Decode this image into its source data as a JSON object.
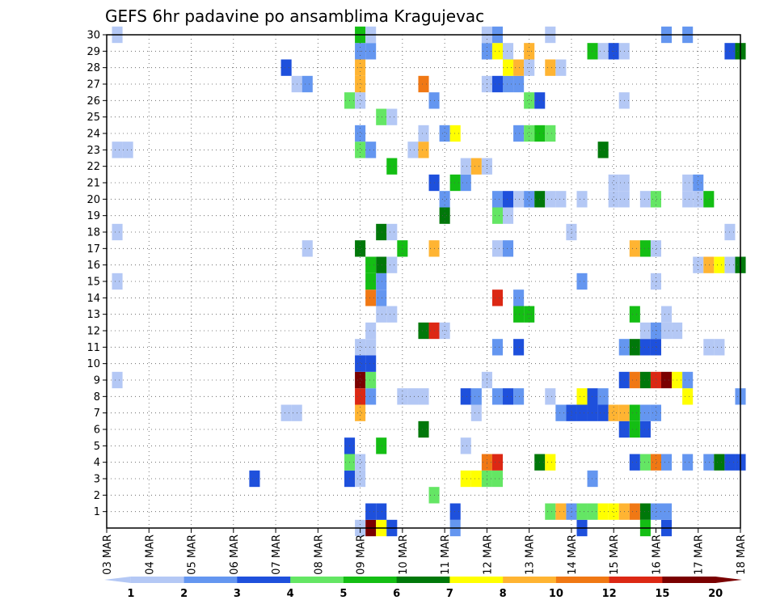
{
  "chart_data": {
    "type": "heatmap",
    "title": "GEFS 6hr padavine po ansamblima Kragujevac",
    "x_tick_labels": [
      "03 MAR",
      "04 MAR",
      "05 MAR",
      "06 MAR",
      "07 MAR",
      "08 MAR",
      "09 MAR",
      "10 MAR",
      "11 MAR",
      "12 MAR",
      "13 MAR",
      "14 MAR",
      "15 MAR",
      "16 MAR",
      "17 MAR",
      "18 MAR"
    ],
    "x_step_hours": 6,
    "x_range_days": [
      0,
      15
    ],
    "y_tick_labels": [
      "1",
      "2",
      "3",
      "4",
      "5",
      "6",
      "7",
      "8",
      "9",
      "10",
      "11",
      "12",
      "13",
      "14",
      "15",
      "16",
      "17",
      "18",
      "19",
      "20",
      "21",
      "22",
      "23",
      "24",
      "25",
      "26",
      "27",
      "28",
      "29",
      "30"
    ],
    "y_range": [
      0,
      30
    ],
    "grid": true,
    "colorbar": {
      "position": "bottom",
      "colors": [
        "#b4c8f5",
        "#6496f0",
        "#1e50dc",
        "#64e664",
        "#14be14",
        "#00780a",
        "#ffff00",
        "#ffb432",
        "#f07814",
        "#dc2814",
        "#7a0000"
      ],
      "labels": [
        "1",
        "2",
        "3",
        "4",
        "5",
        "6",
        "7",
        "8",
        "10",
        "12",
        "15",
        "20"
      ]
    },
    "cells": [
      {
        "t": 6.25,
        "m": 0,
        "c": 10
      },
      {
        "t": 6.5,
        "m": 0,
        "c": 6
      },
      {
        "t": 6.75,
        "m": 0,
        "c": 2
      },
      {
        "t": 8.25,
        "m": 0,
        "c": 1
      },
      {
        "t": 11.25,
        "m": 0,
        "c": 2
      },
      {
        "t": 12.75,
        "m": 0,
        "c": 4
      },
      {
        "t": 13.25,
        "m": 0,
        "c": 2
      },
      {
        "t": 6,
        "m": 0,
        "c": 0
      },
      {
        "t": 6.25,
        "m": 1,
        "c": 2
      },
      {
        "t": 6.5,
        "m": 1,
        "c": 2
      },
      {
        "t": 8.25,
        "m": 1,
        "c": 2
      },
      {
        "t": 10.5,
        "m": 1,
        "c": 3
      },
      {
        "t": 10.75,
        "m": 1,
        "c": 7
      },
      {
        "t": 11,
        "m": 1,
        "c": 1
      },
      {
        "t": 11.25,
        "m": 1,
        "c": 3
      },
      {
        "t": 11.5,
        "m": 1,
        "c": 3
      },
      {
        "t": 11.75,
        "m": 1,
        "c": 6
      },
      {
        "t": 12,
        "m": 1,
        "c": 6
      },
      {
        "t": 12.25,
        "m": 1,
        "c": 7
      },
      {
        "t": 12.5,
        "m": 1,
        "c": 8
      },
      {
        "t": 12.75,
        "m": 1,
        "c": 5
      },
      {
        "t": 13,
        "m": 1,
        "c": 1
      },
      {
        "t": 13.25,
        "m": 1,
        "c": 1
      },
      {
        "t": 7.75,
        "m": 2,
        "c": 3
      },
      {
        "t": 3.5,
        "m": 3,
        "c": 2
      },
      {
        "t": 5.75,
        "m": 3,
        "c": 2
      },
      {
        "t": 6,
        "m": 3,
        "c": 0
      },
      {
        "t": 8.5,
        "m": 3,
        "c": 6
      },
      {
        "t": 8.75,
        "m": 3,
        "c": 6
      },
      {
        "t": 9,
        "m": 3,
        "c": 3
      },
      {
        "t": 9.25,
        "m": 3,
        "c": 3
      },
      {
        "t": 11.5,
        "m": 3,
        "c": 1
      },
      {
        "t": 5.75,
        "m": 4,
        "c": 3
      },
      {
        "t": 6,
        "m": 4,
        "c": 0
      },
      {
        "t": 9,
        "m": 4,
        "c": 8
      },
      {
        "t": 9.25,
        "m": 4,
        "c": 9
      },
      {
        "t": 10.25,
        "m": 4,
        "c": 5
      },
      {
        "t": 10.5,
        "m": 4,
        "c": 6
      },
      {
        "t": 12.5,
        "m": 4,
        "c": 2
      },
      {
        "t": 12.75,
        "m": 4,
        "c": 3
      },
      {
        "t": 13,
        "m": 4,
        "c": 8
      },
      {
        "t": 13.25,
        "m": 4,
        "c": 1
      },
      {
        "t": 13.75,
        "m": 4,
        "c": 1
      },
      {
        "t": 14.25,
        "m": 4,
        "c": 1
      },
      {
        "t": 14.5,
        "m": 4,
        "c": 5
      },
      {
        "t": 14.75,
        "m": 4,
        "c": 2
      },
      {
        "t": 15,
        "m": 4,
        "c": 2
      },
      {
        "t": 5.75,
        "m": 5,
        "c": 2
      },
      {
        "t": 6.5,
        "m": 5,
        "c": 4
      },
      {
        "t": 8.5,
        "m": 5,
        "c": 0
      },
      {
        "t": 7.5,
        "m": 6,
        "c": 5
      },
      {
        "t": 12.75,
        "m": 6,
        "c": 2
      },
      {
        "t": 12.5,
        "m": 6,
        "c": 4
      },
      {
        "t": 12.25,
        "m": 6,
        "c": 2
      },
      {
        "t": 4.25,
        "m": 7,
        "c": 0
      },
      {
        "t": 4.5,
        "m": 7,
        "c": 0
      },
      {
        "t": 6,
        "m": 7,
        "c": 7
      },
      {
        "t": 8.75,
        "m": 7,
        "c": 0
      },
      {
        "t": 10.75,
        "m": 7,
        "c": 1
      },
      {
        "t": 11,
        "m": 7,
        "c": 2
      },
      {
        "t": 11.25,
        "m": 7,
        "c": 2
      },
      {
        "t": 11.5,
        "m": 7,
        "c": 2
      },
      {
        "t": 11.75,
        "m": 7,
        "c": 2
      },
      {
        "t": 12,
        "m": 7,
        "c": 7
      },
      {
        "t": 12.25,
        "m": 7,
        "c": 7
      },
      {
        "t": 12.5,
        "m": 7,
        "c": 4
      },
      {
        "t": 12.75,
        "m": 7,
        "c": 1
      },
      {
        "t": 13,
        "m": 7,
        "c": 1
      },
      {
        "t": 6,
        "m": 8,
        "c": 9
      },
      {
        "t": 6.25,
        "m": 8,
        "c": 1
      },
      {
        "t": 7,
        "m": 8,
        "c": 0
      },
      {
        "t": 7.25,
        "m": 8,
        "c": 0
      },
      {
        "t": 7.5,
        "m": 8,
        "c": 0
      },
      {
        "t": 8.5,
        "m": 8,
        "c": 2
      },
      {
        "t": 8.75,
        "m": 8,
        "c": 1
      },
      {
        "t": 9.25,
        "m": 8,
        "c": 1
      },
      {
        "t": 9.5,
        "m": 8,
        "c": 2
      },
      {
        "t": 9.75,
        "m": 8,
        "c": 1
      },
      {
        "t": 10.5,
        "m": 8,
        "c": 0
      },
      {
        "t": 11.25,
        "m": 8,
        "c": 6
      },
      {
        "t": 11.5,
        "m": 8,
        "c": 2
      },
      {
        "t": 11.75,
        "m": 8,
        "c": 1
      },
      {
        "t": 13.75,
        "m": 8,
        "c": 6
      },
      {
        "t": 15,
        "m": 8,
        "c": 1
      },
      {
        "t": 0.25,
        "m": 9,
        "c": 0
      },
      {
        "t": 6,
        "m": 9,
        "c": 10
      },
      {
        "t": 6.25,
        "m": 9,
        "c": 3
      },
      {
        "t": 9,
        "m": 9,
        "c": 0
      },
      {
        "t": 12.25,
        "m": 9,
        "c": 2
      },
      {
        "t": 12.5,
        "m": 9,
        "c": 8
      },
      {
        "t": 12.75,
        "m": 9,
        "c": 5
      },
      {
        "t": 13,
        "m": 9,
        "c": 9
      },
      {
        "t": 13.25,
        "m": 9,
        "c": 10
      },
      {
        "t": 13.5,
        "m": 9,
        "c": 6
      },
      {
        "t": 13.75,
        "m": 9,
        "c": 1
      },
      {
        "t": 6,
        "m": 10,
        "c": 2
      },
      {
        "t": 6.25,
        "m": 10,
        "c": 2
      },
      {
        "t": 6,
        "m": 11,
        "c": 0
      },
      {
        "t": 6.25,
        "m": 11,
        "c": 0
      },
      {
        "t": 9.25,
        "m": 11,
        "c": 1
      },
      {
        "t": 9.75,
        "m": 11,
        "c": 2
      },
      {
        "t": 12.25,
        "m": 11,
        "c": 1
      },
      {
        "t": 12.5,
        "m": 11,
        "c": 5
      },
      {
        "t": 12.75,
        "m": 11,
        "c": 2
      },
      {
        "t": 13,
        "m": 11,
        "c": 2
      },
      {
        "t": 14.25,
        "m": 11,
        "c": 0
      },
      {
        "t": 14.5,
        "m": 11,
        "c": 0
      },
      {
        "t": 6.25,
        "m": 12,
        "c": 0
      },
      {
        "t": 7.5,
        "m": 12,
        "c": 5
      },
      {
        "t": 7.75,
        "m": 12,
        "c": 9
      },
      {
        "t": 8,
        "m": 12,
        "c": 0
      },
      {
        "t": 12.75,
        "m": 12,
        "c": 0
      },
      {
        "t": 13,
        "m": 12,
        "c": 1
      },
      {
        "t": 13.25,
        "m": 12,
        "c": 0
      },
      {
        "t": 13.5,
        "m": 12,
        "c": 0
      },
      {
        "t": 6.5,
        "m": 13,
        "c": 0
      },
      {
        "t": 6.75,
        "m": 13,
        "c": 0
      },
      {
        "t": 9.75,
        "m": 13,
        "c": 4
      },
      {
        "t": 10,
        "m": 13,
        "c": 4
      },
      {
        "t": 12.5,
        "m": 13,
        "c": 4
      },
      {
        "t": 13.25,
        "m": 13,
        "c": 0
      },
      {
        "t": 6.25,
        "m": 14,
        "c": 8
      },
      {
        "t": 6.5,
        "m": 14,
        "c": 1
      },
      {
        "t": 9.25,
        "m": 14,
        "c": 9
      },
      {
        "t": 9.75,
        "m": 14,
        "c": 1
      },
      {
        "t": 0.25,
        "m": 15,
        "c": 0
      },
      {
        "t": 6.25,
        "m": 15,
        "c": 4
      },
      {
        "t": 6.5,
        "m": 15,
        "c": 1
      },
      {
        "t": 11.25,
        "m": 15,
        "c": 1
      },
      {
        "t": 13,
        "m": 15,
        "c": 0
      },
      {
        "t": 6.25,
        "m": 16,
        "c": 4
      },
      {
        "t": 6.5,
        "m": 16,
        "c": 5
      },
      {
        "t": 6.75,
        "m": 16,
        "c": 0
      },
      {
        "t": 14,
        "m": 16,
        "c": 0
      },
      {
        "t": 14.25,
        "m": 16,
        "c": 7
      },
      {
        "t": 14.5,
        "m": 16,
        "c": 6
      },
      {
        "t": 14.75,
        "m": 16,
        "c": 0
      },
      {
        "t": 15,
        "m": 16,
        "c": 5
      },
      {
        "t": 4.75,
        "m": 17,
        "c": 0
      },
      {
        "t": 6,
        "m": 17,
        "c": 5
      },
      {
        "t": 7,
        "m": 17,
        "c": 4
      },
      {
        "t": 7.75,
        "m": 17,
        "c": 7
      },
      {
        "t": 9.25,
        "m": 17,
        "c": 0
      },
      {
        "t": 9.5,
        "m": 17,
        "c": 1
      },
      {
        "t": 12.5,
        "m": 17,
        "c": 7
      },
      {
        "t": 12.75,
        "m": 17,
        "c": 4
      },
      {
        "t": 13,
        "m": 17,
        "c": 0
      },
      {
        "t": 0.25,
        "m": 18,
        "c": 0
      },
      {
        "t": 6.5,
        "m": 18,
        "c": 5
      },
      {
        "t": 6.75,
        "m": 18,
        "c": 0
      },
      {
        "t": 11,
        "m": 18,
        "c": 0
      },
      {
        "t": 14.75,
        "m": 18,
        "c": 0
      },
      {
        "t": 8,
        "m": 19,
        "c": 5
      },
      {
        "t": 9.25,
        "m": 19,
        "c": 3
      },
      {
        "t": 9.5,
        "m": 19,
        "c": 0
      },
      {
        "t": 8,
        "m": 20,
        "c": 1
      },
      {
        "t": 9.25,
        "m": 20,
        "c": 1
      },
      {
        "t": 9.5,
        "m": 20,
        "c": 2
      },
      {
        "t": 9.75,
        "m": 20,
        "c": 0
      },
      {
        "t": 10,
        "m": 20,
        "c": 1
      },
      {
        "t": 10.25,
        "m": 20,
        "c": 5
      },
      {
        "t": 10.5,
        "m": 20,
        "c": 0
      },
      {
        "t": 10.75,
        "m": 20,
        "c": 0
      },
      {
        "t": 11.25,
        "m": 20,
        "c": 0
      },
      {
        "t": 12,
        "m": 20,
        "c": 0
      },
      {
        "t": 12.25,
        "m": 20,
        "c": 0
      },
      {
        "t": 12.75,
        "m": 20,
        "c": 0
      },
      {
        "t": 13,
        "m": 20,
        "c": 3
      },
      {
        "t": 13.75,
        "m": 20,
        "c": 0
      },
      {
        "t": 14,
        "m": 20,
        "c": 0
      },
      {
        "t": 14.25,
        "m": 20,
        "c": 4
      },
      {
        "t": 7.75,
        "m": 21,
        "c": 2
      },
      {
        "t": 8.25,
        "m": 21,
        "c": 4
      },
      {
        "t": 8.5,
        "m": 21,
        "c": 1
      },
      {
        "t": 12,
        "m": 21,
        "c": 0
      },
      {
        "t": 12.25,
        "m": 21,
        "c": 0
      },
      {
        "t": 13.75,
        "m": 21,
        "c": 0
      },
      {
        "t": 14,
        "m": 21,
        "c": 1
      },
      {
        "t": 6.75,
        "m": 22,
        "c": 4
      },
      {
        "t": 8.5,
        "m": 22,
        "c": 0
      },
      {
        "t": 8.75,
        "m": 22,
        "c": 7
      },
      {
        "t": 9,
        "m": 22,
        "c": 0
      },
      {
        "t": 0.25,
        "m": 23,
        "c": 0
      },
      {
        "t": 0.5,
        "m": 23,
        "c": 0
      },
      {
        "t": 6,
        "m": 23,
        "c": 3
      },
      {
        "t": 6.25,
        "m": 23,
        "c": 1
      },
      {
        "t": 7.25,
        "m": 23,
        "c": 0
      },
      {
        "t": 7.5,
        "m": 23,
        "c": 7
      },
      {
        "t": 11.75,
        "m": 23,
        "c": 5
      },
      {
        "t": 6,
        "m": 24,
        "c": 1
      },
      {
        "t": 7.5,
        "m": 24,
        "c": 0
      },
      {
        "t": 8,
        "m": 24,
        "c": 1
      },
      {
        "t": 8.25,
        "m": 24,
        "c": 6
      },
      {
        "t": 9.75,
        "m": 24,
        "c": 1
      },
      {
        "t": 10,
        "m": 24,
        "c": 3
      },
      {
        "t": 10.25,
        "m": 24,
        "c": 4
      },
      {
        "t": 10.5,
        "m": 24,
        "c": 3
      },
      {
        "t": 6.5,
        "m": 25,
        "c": 3
      },
      {
        "t": 6.75,
        "m": 25,
        "c": 0
      },
      {
        "t": 5.75,
        "m": 26,
        "c": 3
      },
      {
        "t": 6,
        "m": 26,
        "c": 0
      },
      {
        "t": 7.75,
        "m": 26,
        "c": 1
      },
      {
        "t": 10,
        "m": 26,
        "c": 3
      },
      {
        "t": 10.25,
        "m": 26,
        "c": 2
      },
      {
        "t": 12.25,
        "m": 26,
        "c": 0
      },
      {
        "t": 4.5,
        "m": 27,
        "c": 0
      },
      {
        "t": 4.75,
        "m": 27,
        "c": 1
      },
      {
        "t": 6,
        "m": 27,
        "c": 7
      },
      {
        "t": 7.5,
        "m": 27,
        "c": 8
      },
      {
        "t": 9,
        "m": 27,
        "c": 0
      },
      {
        "t": 9.25,
        "m": 27,
        "c": 2
      },
      {
        "t": 9.5,
        "m": 27,
        "c": 1
      },
      {
        "t": 9.75,
        "m": 27,
        "c": 1
      },
      {
        "t": 4.25,
        "m": 28,
        "c": 2
      },
      {
        "t": 6,
        "m": 28,
        "c": 7
      },
      {
        "t": 9.5,
        "m": 28,
        "c": 6
      },
      {
        "t": 9.75,
        "m": 28,
        "c": 7
      },
      {
        "t": 10,
        "m": 28,
        "c": 0
      },
      {
        "t": 10.5,
        "m": 28,
        "c": 7
      },
      {
        "t": 10.75,
        "m": 28,
        "c": 0
      },
      {
        "t": 6,
        "m": 29,
        "c": 1
      },
      {
        "t": 6.25,
        "m": 29,
        "c": 1
      },
      {
        "t": 9,
        "m": 29,
        "c": 1
      },
      {
        "t": 9.25,
        "m": 29,
        "c": 6
      },
      {
        "t": 9.5,
        "m": 29,
        "c": 0
      },
      {
        "t": 10,
        "m": 29,
        "c": 7
      },
      {
        "t": 11.5,
        "m": 29,
        "c": 4
      },
      {
        "t": 11.75,
        "m": 29,
        "c": 0
      },
      {
        "t": 12,
        "m": 29,
        "c": 2
      },
      {
        "t": 12.25,
        "m": 29,
        "c": 0
      },
      {
        "t": 14.75,
        "m": 29,
        "c": 2
      },
      {
        "t": 15,
        "m": 29,
        "c": 5
      },
      {
        "t": 0.25,
        "m": 30,
        "c": 0
      },
      {
        "t": 6,
        "m": 30,
        "c": 4
      },
      {
        "t": 6.25,
        "m": 30,
        "c": 0
      },
      {
        "t": 9,
        "m": 30,
        "c": 0
      },
      {
        "t": 9.25,
        "m": 30,
        "c": 1
      },
      {
        "t": 10.5,
        "m": 30,
        "c": 0
      },
      {
        "t": 13.25,
        "m": 30,
        "c": 1
      },
      {
        "t": 13.75,
        "m": 30,
        "c": 1
      }
    ]
  }
}
